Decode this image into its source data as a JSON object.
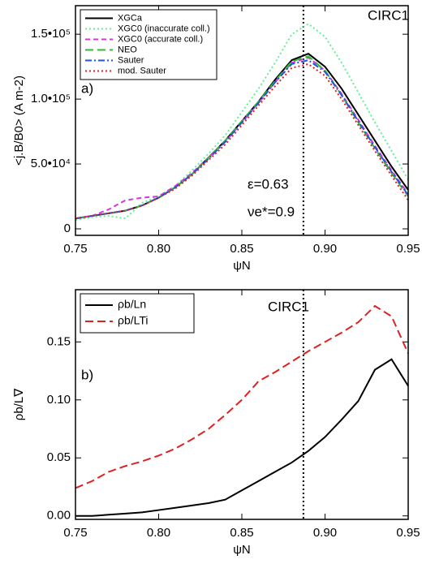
{
  "chart_data": [
    {
      "type": "line",
      "xlabel": "ψN",
      "ylabel": "<j.B/B0> (A m-2)",
      "annotations": [
        "CIRC1",
        "a)",
        "ε=0.63",
        "νe*=0.9"
      ],
      "vline": 0.887,
      "xlim": [
        0.75,
        0.95
      ],
      "xticks": [
        0.75,
        {
          "value": 0.8,
          "label": "0.80"
        },
        0.85,
        {
          "value": 0.9,
          "label": "0.90"
        },
        0.95
      ],
      "ylim": [
        -5000,
        172000
      ],
      "yticks": [
        0,
        {
          "value": 50000,
          "label": "5.0•10⁴"
        },
        {
          "value": 100000,
          "label": "1.0•10⁵"
        },
        {
          "value": 150000,
          "label": "1.5•10⁵"
        }
      ],
      "legend": "upper left",
      "x": [
        0.75,
        0.76,
        0.77,
        0.78,
        0.79,
        0.8,
        0.81,
        0.82,
        0.83,
        0.84,
        0.85,
        0.86,
        0.87,
        0.88,
        0.89,
        0.9,
        0.91,
        0.92,
        0.93,
        0.94,
        0.95
      ],
      "series": [
        {
          "name": "XGCa",
          "color": "#000000",
          "dash": "solid",
          "values": [
            8000,
            10000,
            12000,
            14000,
            18000,
            24000,
            32000,
            42000,
            55000,
            68000,
            83000,
            98000,
            115000,
            130000,
            135000,
            125000,
            108000,
            88000,
            68000,
            48000,
            30000
          ]
        },
        {
          "name": "XGC0 (inaccurate coll.)",
          "color": "#66ee99",
          "dash": "dotted",
          "values": [
            7000,
            9000,
            10000,
            8000,
            20000,
            25000,
            33000,
            45000,
            58000,
            72000,
            90000,
            108000,
            128000,
            150000,
            158000,
            148000,
            128000,
            105000,
            82000,
            60000,
            38000
          ]
        },
        {
          "name": "XGC0 (accurate coll.)",
          "color": "#dd33dd",
          "dash": "dashed",
          "values": [
            8000,
            10000,
            15000,
            22000,
            24000,
            25000,
            33000,
            43000,
            55000,
            67000,
            82000,
            97000,
            113000,
            128000,
            132000,
            122000,
            104000,
            84000,
            64000,
            45000,
            27000
          ]
        },
        {
          "name": "NEO",
          "color": "#33bb33",
          "dash": "longdash",
          "values": [
            8000,
            10000,
            12000,
            14000,
            18000,
            24000,
            32000,
            42000,
            55000,
            68000,
            83000,
            98000,
            114000,
            129000,
            133000,
            122000,
            103000,
            82000,
            62000,
            43000,
            25000
          ]
        },
        {
          "name": "Sauter",
          "color": "#2255dd",
          "dash": "dashdot",
          "values": [
            8000,
            10000,
            12000,
            14000,
            18000,
            24000,
            32000,
            42000,
            54000,
            67000,
            82000,
            97000,
            113000,
            127000,
            130000,
            121000,
            103000,
            83000,
            63000,
            44000,
            26000
          ]
        },
        {
          "name": "mod. Sauter",
          "color": "#dd2222",
          "dash": "dotted",
          "values": [
            8000,
            10000,
            12000,
            14000,
            18000,
            24000,
            31000,
            41000,
            53000,
            65000,
            80000,
            95000,
            110000,
            124000,
            127000,
            118000,
            100000,
            80000,
            60000,
            41000,
            22000
          ]
        }
      ]
    },
    {
      "type": "line",
      "xlabel": "ψN",
      "ylabel": "ρb/L∇",
      "annotations": [
        "CIRC1",
        "b)"
      ],
      "vline": 0.887,
      "xlim": [
        0.75,
        0.95
      ],
      "xticks": [
        0.75,
        {
          "value": 0.8,
          "label": "0.80"
        },
        0.85,
        {
          "value": 0.9,
          "label": "0.90"
        },
        0.95
      ],
      "ylim": [
        -0.003,
        0.195
      ],
      "yticks": [
        {
          "value": 0,
          "label": "0.00"
        },
        0.05,
        {
          "value": 0.1,
          "label": "0.10"
        },
        0.15
      ],
      "legend": "upper left",
      "x": [
        0.75,
        0.76,
        0.77,
        0.78,
        0.79,
        0.8,
        0.81,
        0.82,
        0.83,
        0.84,
        0.85,
        0.86,
        0.87,
        0.88,
        0.89,
        0.9,
        0.91,
        0.92,
        0.93,
        0.94,
        0.95
      ],
      "series": [
        {
          "name": "ρb/Ln",
          "color": "#000000",
          "dash": "solid",
          "values": [
            0,
            0,
            0.001,
            0.002,
            0.003,
            0.005,
            0.007,
            0.009,
            0.011,
            0.014,
            0.022,
            0.03,
            0.038,
            0.046,
            0.056,
            0.068,
            0.083,
            0.099,
            0.126,
            0.135,
            0.112
          ]
        },
        {
          "name": "ρb/LTi",
          "color": "#dd2222",
          "dash": "longdash",
          "values": [
            0.024,
            0.03,
            0.038,
            0.043,
            0.047,
            0.052,
            0.058,
            0.066,
            0.075,
            0.087,
            0.1,
            0.116,
            0.124,
            0.133,
            0.142,
            0.15,
            0.158,
            0.167,
            0.181,
            0.172,
            0.14
          ]
        }
      ]
    }
  ]
}
